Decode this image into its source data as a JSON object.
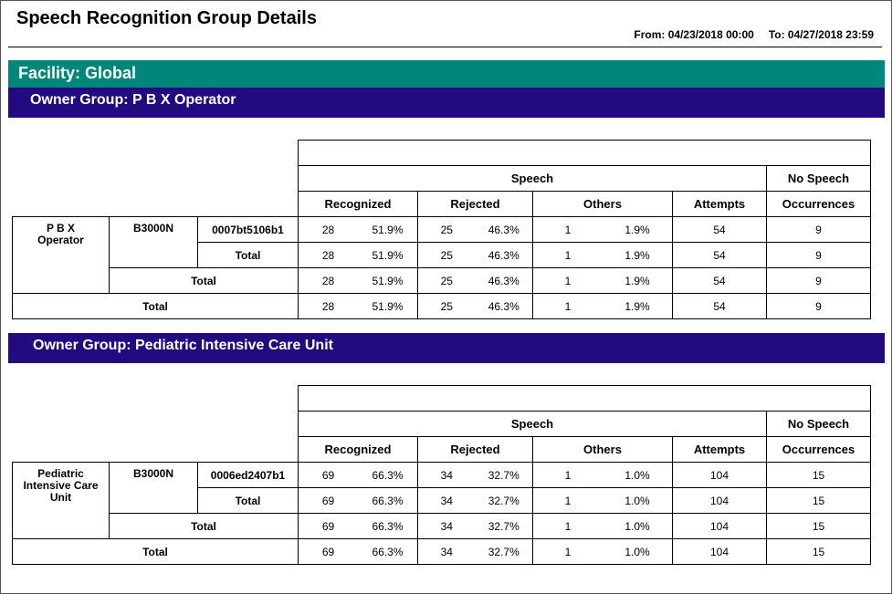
{
  "report": {
    "title": "Speech Recognition Group Details",
    "from": "From: 04/23/2018 00:00",
    "to": "To: 04/27/2018 23:59"
  },
  "facility": {
    "label": "Facility: Global"
  },
  "headers": {
    "speech": "Speech",
    "no_speech": "No Speech",
    "recognized": "Recognized",
    "rejected": "Rejected",
    "others": "Others",
    "attempts": "Attempts",
    "occurrences": "Occurrences",
    "total": "Total"
  },
  "groups": [
    {
      "owner_label": "Owner Group: P B X Operator",
      "name": "P B X Operator",
      "device": "B3000N",
      "serial": "0007bt5106b1",
      "rows": [
        {
          "rec_n": "28",
          "rec_p": "51.9%",
          "rej_n": "25",
          "rej_p": "46.3%",
          "oth_n": "1",
          "oth_p": "1.9%",
          "attempts": "54",
          "occurrences": "9"
        },
        {
          "rec_n": "28",
          "rec_p": "51.9%",
          "rej_n": "25",
          "rej_p": "46.3%",
          "oth_n": "1",
          "oth_p": "1.9%",
          "attempts": "54",
          "occurrences": "9"
        },
        {
          "rec_n": "28",
          "rec_p": "51.9%",
          "rej_n": "25",
          "rej_p": "46.3%",
          "oth_n": "1",
          "oth_p": "1.9%",
          "attempts": "54",
          "occurrences": "9"
        },
        {
          "rec_n": "28",
          "rec_p": "51.9%",
          "rej_n": "25",
          "rej_p": "46.3%",
          "oth_n": "1",
          "oth_p": "1.9%",
          "attempts": "54",
          "occurrences": "9"
        }
      ]
    },
    {
      "owner_label": "Owner Group: Pediatric Intensive Care Unit",
      "name": "Pediatric Intensive Care Unit",
      "device": "B3000N",
      "serial": "0006ed2407b1",
      "rows": [
        {
          "rec_n": "69",
          "rec_p": "66.3%",
          "rej_n": "34",
          "rej_p": "32.7%",
          "oth_n": "1",
          "oth_p": "1.0%",
          "attempts": "104",
          "occurrences": "15"
        },
        {
          "rec_n": "69",
          "rec_p": "66.3%",
          "rej_n": "34",
          "rej_p": "32.7%",
          "oth_n": "1",
          "oth_p": "1.0%",
          "attempts": "104",
          "occurrences": "15"
        },
        {
          "rec_n": "69",
          "rec_p": "66.3%",
          "rej_n": "34",
          "rej_p": "32.7%",
          "oth_n": "1",
          "oth_p": "1.0%",
          "attempts": "104",
          "occurrences": "15"
        },
        {
          "rec_n": "69",
          "rec_p": "66.3%",
          "rej_n": "34",
          "rej_p": "32.7%",
          "oth_n": "1",
          "oth_p": "1.0%",
          "attempts": "104",
          "occurrences": "15"
        }
      ]
    }
  ]
}
